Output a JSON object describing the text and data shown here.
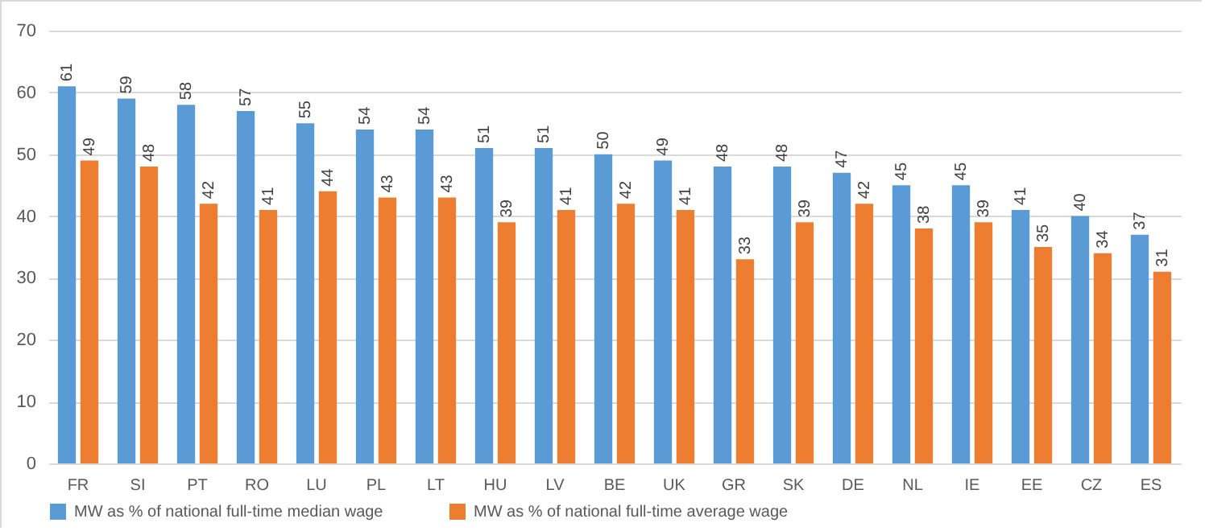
{
  "chart_data": {
    "type": "bar",
    "categories": [
      "FR",
      "SI",
      "PT",
      "RO",
      "LU",
      "PL",
      "LT",
      "HU",
      "LV",
      "BE",
      "UK",
      "GR",
      "SK",
      "DE",
      "NL",
      "IE",
      "EE",
      "CZ",
      "ES"
    ],
    "series": [
      {
        "name": "MW as % of national full-time median wage",
        "color": "#5b9bd5",
        "values": [
          61,
          59,
          58,
          57,
          55,
          54,
          54,
          51,
          51,
          50,
          49,
          48,
          48,
          47,
          45,
          45,
          41,
          40,
          37
        ]
      },
      {
        "name": "MW as % of national full-time average wage",
        "color": "#ed7d31",
        "values": [
          49,
          48,
          42,
          41,
          44,
          43,
          43,
          39,
          41,
          42,
          41,
          33,
          39,
          42,
          38,
          39,
          35,
          34,
          31
        ]
      }
    ],
    "ylim": [
      0,
      70
    ],
    "yticks": [
      0,
      10,
      20,
      30,
      40,
      50,
      60,
      70
    ],
    "grid": "y",
    "legend": "bottom",
    "data_labels": true
  }
}
